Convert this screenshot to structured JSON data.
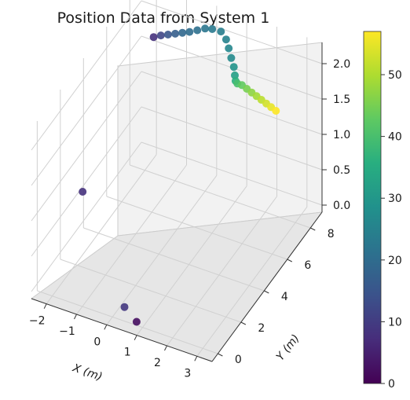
{
  "chart_data": {
    "type": "scatter",
    "projection": "3d",
    "title": "Position Data from System 1",
    "xlabel": "X (m)",
    "ylabel": "Y (m)",
    "zlabel": "",
    "xlim": [
      -2.5,
      3.5
    ],
    "ylim": [
      -0.5,
      9
    ],
    "zlim": [
      -0.1,
      2.3
    ],
    "x_ticks": [
      "−2",
      "−1",
      "0",
      "1",
      "2",
      "3"
    ],
    "y_ticks": [
      "0",
      "2",
      "4",
      "6",
      "8"
    ],
    "z_ticks": [
      "0.0",
      "0.5",
      "1.0",
      "1.5",
      "2.0"
    ],
    "grid": true,
    "colormap": "viridis",
    "colorbar": {
      "min": 0,
      "max": 57,
      "ticks": [
        "0",
        "10",
        "20",
        "30",
        "40",
        "50"
      ]
    },
    "series": [
      {
        "points": [
          {
            "x": -1.3,
            "y": 0.8,
            "z": 1.3,
            "c": 8
          },
          {
            "x": 0.4,
            "y": 0.0,
            "z": 0.1,
            "c": 9
          },
          {
            "x": 0.8,
            "y": 0.0,
            "z": -0.05,
            "c": 2
          },
          {
            "x": -1.4,
            "y": 7.2,
            "z": 2.05,
            "c": 8
          },
          {
            "x": -1.2,
            "y": 7.3,
            "z": 2.08,
            "c": 12
          },
          {
            "x": -1.0,
            "y": 7.4,
            "z": 2.1,
            "c": 15
          },
          {
            "x": -0.8,
            "y": 7.5,
            "z": 2.12,
            "c": 17
          },
          {
            "x": -0.6,
            "y": 7.6,
            "z": 2.14,
            "c": 19
          },
          {
            "x": -0.4,
            "y": 7.7,
            "z": 2.16,
            "c": 20
          },
          {
            "x": -0.2,
            "y": 7.85,
            "z": 2.18,
            "c": 21
          },
          {
            "x": 0.0,
            "y": 8.0,
            "z": 2.2,
            "c": 22
          },
          {
            "x": 0.2,
            "y": 8.1,
            "z": 2.2,
            "c": 23
          },
          {
            "x": 0.45,
            "y": 8.2,
            "z": 2.18,
            "c": 24
          },
          {
            "x": 0.7,
            "y": 8.0,
            "z": 2.15,
            "c": 25
          },
          {
            "x": 0.9,
            "y": 7.7,
            "z": 2.12,
            "c": 26
          },
          {
            "x": 1.1,
            "y": 7.4,
            "z": 2.08,
            "c": 27
          },
          {
            "x": 1.3,
            "y": 7.1,
            "z": 2.05,
            "c": 29
          },
          {
            "x": 1.45,
            "y": 6.8,
            "z": 2.02,
            "c": 32
          },
          {
            "x": 1.55,
            "y": 6.6,
            "z": 2.0,
            "c": 36
          },
          {
            "x": 1.65,
            "y": 6.5,
            "z": 2.0,
            "c": 40
          },
          {
            "x": 1.8,
            "y": 6.5,
            "z": 2.0,
            "c": 43
          },
          {
            "x": 2.0,
            "y": 6.4,
            "z": 2.0,
            "c": 45
          },
          {
            "x": 2.2,
            "y": 6.3,
            "z": 2.0,
            "c": 47
          },
          {
            "x": 2.4,
            "y": 6.2,
            "z": 2.0,
            "c": 49
          },
          {
            "x": 2.6,
            "y": 6.1,
            "z": 2.0,
            "c": 51
          },
          {
            "x": 2.8,
            "y": 6.0,
            "z": 2.0,
            "c": 53
          },
          {
            "x": 3.0,
            "y": 5.9,
            "z": 2.0,
            "c": 55
          },
          {
            "x": 3.2,
            "y": 5.8,
            "z": 2.0,
            "c": 57
          }
        ]
      }
    ]
  }
}
